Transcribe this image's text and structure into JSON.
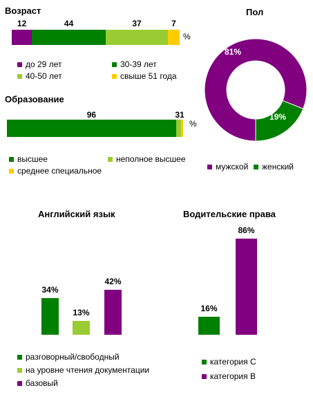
{
  "colors": {
    "purple": "#800080",
    "green": "#008000",
    "lightgreen": "#99cc33",
    "yellow": "#ffcc00"
  },
  "chart_data": [
    {
      "id": "age",
      "type": "bar",
      "orientation": "horizontal-stacked",
      "title": "Возраст",
      "unit_label": "%",
      "series": [
        {
          "name": "до 29 лет",
          "value": 12,
          "color": "#800080"
        },
        {
          "name": "30-39 лет",
          "value": 44,
          "color": "#008000"
        },
        {
          "name": "40-50 лет",
          "value": 37,
          "color": "#99cc33"
        },
        {
          "name": "свыше 51 года",
          "value": 7,
          "color": "#ffcc00"
        }
      ]
    },
    {
      "id": "gender",
      "type": "pie",
      "variant": "donut",
      "title": "Пол",
      "slices": [
        {
          "name": "мужской",
          "value": 81,
          "label": "81%",
          "color": "#800080"
        },
        {
          "name": "женский",
          "value": 19,
          "label": "19%",
          "color": "#008000"
        }
      ]
    },
    {
      "id": "education",
      "type": "bar",
      "orientation": "horizontal-stacked",
      "title": "Образование",
      "unit_label": "%",
      "label_text": "31",
      "series": [
        {
          "name": "высшее",
          "value": 96,
          "color": "#008000"
        },
        {
          "name": "неполное высшее",
          "value": 3,
          "color": "#99cc33"
        },
        {
          "name": "среднее специальное",
          "value": 1,
          "color": "#ffcc00"
        }
      ]
    },
    {
      "id": "english",
      "type": "bar",
      "title": "Английский язык",
      "series": [
        {
          "name": "разговорный/свободный",
          "value": 34,
          "label": "34%",
          "color": "#008000"
        },
        {
          "name": "на уровне чтения документации",
          "value": 13,
          "label": "13%",
          "color": "#99cc33"
        },
        {
          "name": "базовый",
          "value": 42,
          "label": "42%",
          "color": "#800080"
        }
      ]
    },
    {
      "id": "license",
      "type": "bar",
      "title": "Водительские права",
      "series": [
        {
          "name": "категория С",
          "value": 16,
          "label": "16%",
          "color": "#008000"
        },
        {
          "name": "категория В",
          "value": 86,
          "label": "86%",
          "color": "#800080"
        }
      ]
    }
  ]
}
